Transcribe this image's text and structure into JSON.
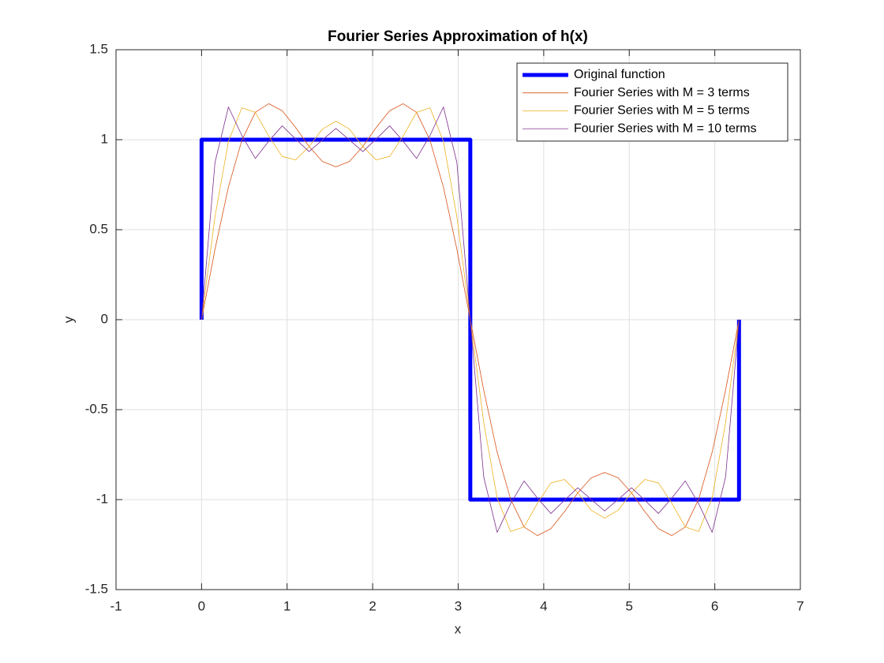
{
  "chart_data": {
    "type": "line",
    "title": "Fourier Series Approximation of h(x)",
    "x_label": "x",
    "y_label": "y",
    "xlim": [
      -1,
      7
    ],
    "ylim": [
      -1.5,
      1.5
    ],
    "xticks": [
      -1,
      0,
      1,
      2,
      3,
      4,
      5,
      6,
      7
    ],
    "yticks": [
      -1.5,
      -1,
      -0.5,
      0,
      0.5,
      1,
      1.5
    ],
    "grid": true,
    "legend": "upper right",
    "x": [
      0,
      0.1571,
      0.3142,
      0.4712,
      0.6283,
      0.7854,
      0.9425,
      1.0996,
      1.2566,
      1.4137,
      1.5708,
      1.7279,
      1.885,
      2.042,
      2.1991,
      2.3562,
      2.5133,
      2.6704,
      2.8274,
      2.9845,
      3.1416,
      3.2987,
      3.4558,
      3.6128,
      3.7699,
      3.927,
      4.0841,
      4.2412,
      4.3982,
      4.5553,
      4.7124,
      4.8695,
      5.0265,
      5.1836,
      5.3407,
      5.4978,
      5.6549,
      5.8119,
      5.969,
      6.1261,
      6.2832
    ],
    "series": [
      {
        "name": "Original function",
        "color": "#0000ff",
        "width": 5,
        "x": [
          0,
          0,
          3.1416,
          3.1416,
          6.2832,
          6.2832
        ],
        "values": [
          0,
          1,
          1,
          -1,
          -1,
          0
        ]
      },
      {
        "name": "Fourier Series with M = 3 terms",
        "color": "#d95319",
        "width": 0.8,
        "values": [
          0,
          0.392,
          0.737,
          0.997,
          1.152,
          1.2,
          1.161,
          1.068,
          0.962,
          0.879,
          0.849,
          0.879,
          0.962,
          1.068,
          1.161,
          1.2,
          1.152,
          0.997,
          0.737,
          0.392,
          0,
          -0.392,
          -0.737,
          -0.997,
          -1.152,
          -1.2,
          -1.161,
          -1.068,
          -0.962,
          -0.879,
          -0.849,
          -0.879,
          -0.962,
          -1.068,
          -1.161,
          -1.2,
          -1.152,
          -0.997,
          -0.737,
          -0.392,
          0
        ]
      },
      {
        "name": "Fourier Series with M = 5 terms",
        "color": "#edb120",
        "width": 0.8,
        "values": [
          0,
          0.572,
          0.991,
          1.177,
          1.152,
          1.02,
          0.907,
          0.888,
          0.962,
          1.059,
          1.103,
          1.059,
          0.962,
          0.888,
          0.907,
          1.02,
          1.152,
          1.177,
          0.991,
          0.572,
          0,
          -0.572,
          -0.991,
          -1.177,
          -1.152,
          -1.02,
          -0.907,
          -0.888,
          -0.962,
          -1.059,
          -1.103,
          -1.059,
          -0.962,
          -0.888,
          -0.907,
          -1.02,
          -1.152,
          -1.177,
          -0.991,
          -0.572,
          0
        ]
      },
      {
        "name": "Fourier Series with M = 10 terms",
        "color": "#7e2f8e",
        "width": 0.8,
        "values": [
          0,
          0.874,
          1.182,
          1.023,
          0.896,
          0.992,
          1.077,
          1.004,
          0.934,
          0.999,
          1.063,
          0.999,
          0.934,
          1.004,
          1.077,
          0.992,
          0.896,
          1.023,
          1.182,
          0.874,
          0,
          -0.874,
          -1.182,
          -1.023,
          -0.896,
          -0.992,
          -1.077,
          -1.004,
          -0.934,
          -0.999,
          -1.063,
          -0.999,
          -0.934,
          -1.004,
          -1.077,
          -0.992,
          -0.896,
          -1.023,
          -1.182,
          -0.874,
          0
        ]
      }
    ]
  }
}
